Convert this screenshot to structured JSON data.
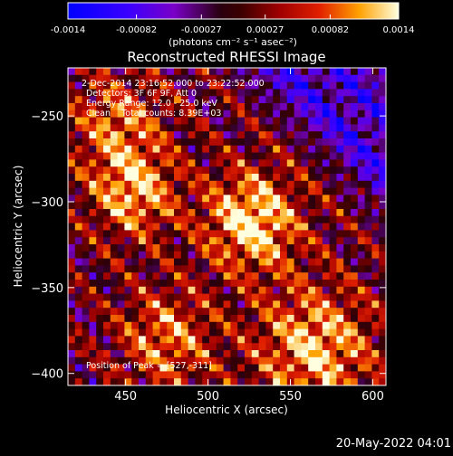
{
  "colorbar": {
    "ticks": [
      "-0.0014",
      "-0.00082",
      "-0.00027",
      "0.00027",
      "0.00082",
      "0.0014"
    ],
    "tick_values": [
      -0.0014,
      -0.00082,
      -0.00027,
      0.00027,
      0.00082,
      0.0014
    ],
    "range": [
      -0.0014,
      0.0014
    ],
    "units_label": "(photons cm⁻² s⁻¹ asec⁻²)"
  },
  "chart_data": {
    "type": "heatmap",
    "title": "Reconstructed RHESSI Image",
    "xlabel": "Heliocentric X (arcsec)",
    "ylabel": "Heliocentric Y (arcsec)",
    "xlim": [
      415,
      608
    ],
    "ylim": [
      -407,
      -222
    ],
    "xticks": [
      450,
      500,
      550,
      600
    ],
    "yticks": [
      -250,
      -300,
      -350,
      -400
    ],
    "peak": [
      527,
      -311
    ],
    "bright_sources": [
      {
        "x": 527,
        "y": -311,
        "level": 1.0,
        "spread": 20
      },
      {
        "x": 455,
        "y": -295,
        "level": 0.8,
        "spread": 18
      },
      {
        "x": 565,
        "y": -385,
        "level": 0.85,
        "spread": 25
      },
      {
        "x": 445,
        "y": -255,
        "level": 0.6,
        "spread": 20
      },
      {
        "x": 475,
        "y": -380,
        "level": 0.65,
        "spread": 20
      }
    ],
    "annotations": [
      " 2-Dec-2014 23:16:52.000 to 23:22:52.000",
      "Detectors: 3F 6F 9F, Att 0",
      "Energy Range: 12.0 - 25.0 keV",
      "Clean    Total counts: 8.39E+03"
    ],
    "peak_label": "Position of Peak = [527,-311]"
  },
  "footer": {
    "date": "20-May-2022 04:01"
  }
}
